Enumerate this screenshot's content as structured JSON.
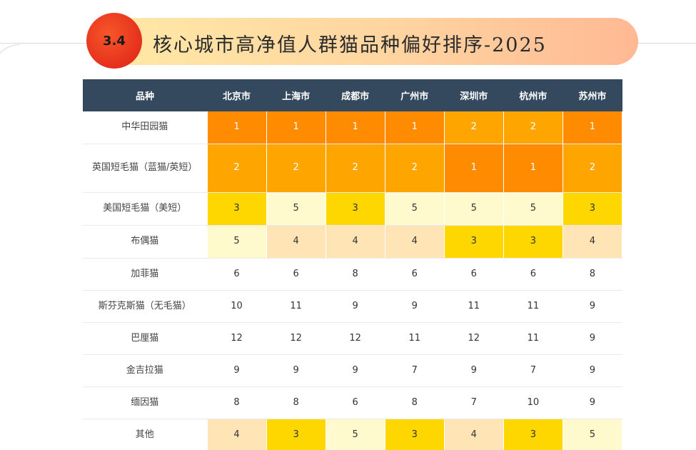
{
  "header": {
    "section_number": "3.4",
    "title": "核心城市高净值人群猫品种偏好排序-2025"
  },
  "chart_data": {
    "type": "table",
    "title": "核心城市高净值人群猫品种偏好排序-2025",
    "columns": [
      "品种",
      "北京市",
      "上海市",
      "成都市",
      "广州市",
      "深圳市",
      "杭州市",
      "苏州市"
    ],
    "rows": [
      {
        "breed": "中华田园猫",
        "ranks": [
          1,
          1,
          1,
          1,
          2,
          2,
          1
        ]
      },
      {
        "breed": "英国短毛猫（蓝猫/英短）",
        "ranks": [
          2,
          2,
          2,
          2,
          1,
          1,
          2
        ]
      },
      {
        "breed": "美国短毛猫（美短）",
        "ranks": [
          3,
          5,
          3,
          5,
          5,
          5,
          3
        ]
      },
      {
        "breed": "布偶猫",
        "ranks": [
          5,
          4,
          4,
          4,
          3,
          3,
          4
        ]
      },
      {
        "breed": "加菲猫",
        "ranks": [
          6,
          6,
          8,
          6,
          6,
          6,
          8
        ]
      },
      {
        "breed": "斯芬克斯猫（无毛猫）",
        "ranks": [
          10,
          11,
          9,
          9,
          11,
          11,
          9
        ]
      },
      {
        "breed": "巴厘猫",
        "ranks": [
          12,
          12,
          12,
          11,
          12,
          11,
          9
        ]
      },
      {
        "breed": "金吉拉猫",
        "ranks": [
          9,
          9,
          9,
          7,
          9,
          7,
          9
        ]
      },
      {
        "breed": "缅因猫",
        "ranks": [
          8,
          8,
          6,
          8,
          7,
          10,
          9
        ]
      },
      {
        "breed": "其他",
        "ranks": [
          4,
          3,
          5,
          3,
          4,
          3,
          5
        ]
      }
    ],
    "rank_colors": {
      "1": "#ff8c00",
      "2": "#ffa500",
      "3": "#ffd700",
      "4": "#ffe4b5",
      "5": "#fffacd",
      "other": "#ffffff"
    },
    "header_color": "#34495e"
  }
}
